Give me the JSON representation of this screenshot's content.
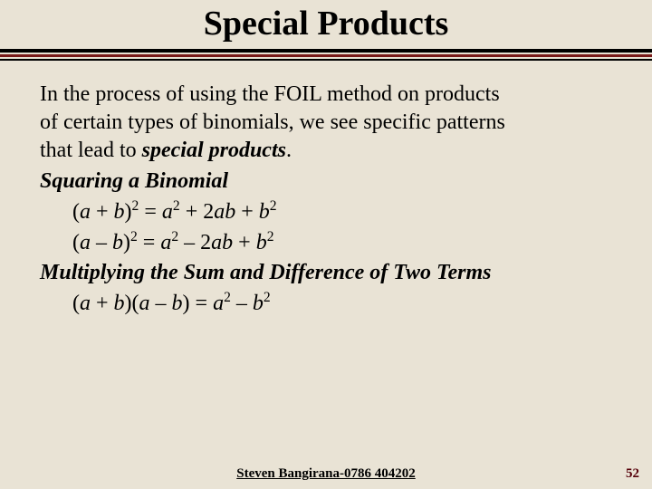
{
  "colors": {
    "background": "#e9e3d5",
    "rule_dark": "#000000",
    "rule_accent": "#7a1a1a",
    "pagenum": "#56000a",
    "text": "#000000"
  },
  "typography": {
    "title_fontsize_pt": 29,
    "body_fontsize_pt": 18,
    "footer_fontsize_pt": 11,
    "font_family": "Times New Roman"
  },
  "title": "Special Products",
  "intro": {
    "line1": "In the process of using the FOIL method on products",
    "line2": "of certain types of binomials, we see specific patterns",
    "line3_prefix": "that lead to ",
    "line3_em": "special products",
    "line3_suffix": "."
  },
  "sections": {
    "squaring": {
      "heading": "Squaring a Binomial",
      "formula1": {
        "lhs_open": "(",
        "a": "a",
        "op1": " + ",
        "b": "b",
        "lhs_close": ")",
        "lhs_exp": "2",
        "eq": " = ",
        "t1_base": "a",
        "t1_exp": "2",
        "op2": " + 2",
        "t2_a": "ab",
        "op3": " + ",
        "t3_base": "b",
        "t3_exp": "2"
      },
      "formula2": {
        "lhs_open": "(",
        "a": "a",
        "op1": " – ",
        "b": "b",
        "lhs_close": ")",
        "lhs_exp": "2",
        "eq": " = ",
        "t1_base": "a",
        "t1_exp": "2",
        "op2": " – 2",
        "t2_a": "ab",
        "op3": " + ",
        "t3_base": "b",
        "t3_exp": "2"
      }
    },
    "sumdiff": {
      "heading": "Multiplying the Sum and Difference of Two Terms",
      "formula": {
        "p1_open": "(",
        "p1_a": "a",
        "p1_op": " + ",
        "p1_b": "b",
        "p1_close": ")",
        "p2_open": "(",
        "p2_a": "a",
        "p2_op": " – ",
        "p2_b": "b",
        "p2_close": ")",
        "eq": " = ",
        "t1_base": "a",
        "t1_exp": "2",
        "op": " – ",
        "t2_base": "b",
        "t2_exp": "2"
      }
    }
  },
  "footer": "Steven Bangirana-0786 404202",
  "pagenum": "52"
}
